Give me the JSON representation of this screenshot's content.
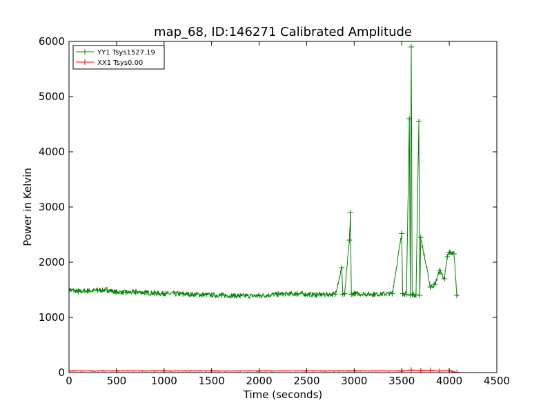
{
  "chart_data": {
    "type": "line",
    "title": "map_68, ID:146271 Calibrated Amplitude",
    "xlabel": "Time (seconds)",
    "ylabel": "Power in Kelvin",
    "xlim": [
      0,
      4500
    ],
    "ylim": [
      0,
      6000
    ],
    "x_ticks": [
      0,
      500,
      1000,
      1500,
      2000,
      2500,
      3000,
      3500,
      4000,
      4500
    ],
    "y_ticks": [
      0,
      1000,
      2000,
      3000,
      4000,
      5000,
      6000
    ],
    "grid": false,
    "legend_position": "top-left",
    "series": [
      {
        "name": "YY1 Tsys1527.19",
        "color": "#008000",
        "marker": "+",
        "x": [
          0,
          100,
          200,
          300,
          400,
          500,
          600,
          700,
          800,
          900,
          1000,
          1200,
          1400,
          1600,
          1800,
          2000,
          2200,
          2400,
          2600,
          2800,
          2870,
          2880,
          2900,
          2950,
          2960,
          2970,
          3000,
          3200,
          3400,
          3500,
          3510,
          3550,
          3580,
          3590,
          3600,
          3610,
          3650,
          3680,
          3690,
          3700,
          3800,
          3850,
          3900,
          3950,
          3980,
          4000,
          4050,
          4080
        ],
        "y": [
          1500,
          1470,
          1480,
          1490,
          1500,
          1460,
          1450,
          1460,
          1450,
          1440,
          1430,
          1425,
          1410,
          1400,
          1390,
          1390,
          1420,
          1430,
          1410,
          1420,
          1900,
          1420,
          1430,
          2400,
          2900,
          1420,
          1430,
          1420,
          1430,
          2520,
          1430,
          1420,
          4600,
          1400,
          5900,
          1420,
          1410,
          4550,
          1400,
          2450,
          1550,
          1600,
          1850,
          1700,
          2100,
          2180,
          2150,
          1400
        ]
      },
      {
        "name": "XX1 Tsys0.00",
        "color": "#ff0000",
        "marker": "+",
        "x": [
          0,
          500,
          1000,
          1500,
          2000,
          2500,
          3000,
          3500,
          3600,
          3700,
          3800,
          3900,
          4000,
          4080
        ],
        "y": [
          30,
          30,
          30,
          30,
          30,
          30,
          30,
          30,
          45,
          35,
          40,
          30,
          35,
          5
        ]
      }
    ]
  }
}
